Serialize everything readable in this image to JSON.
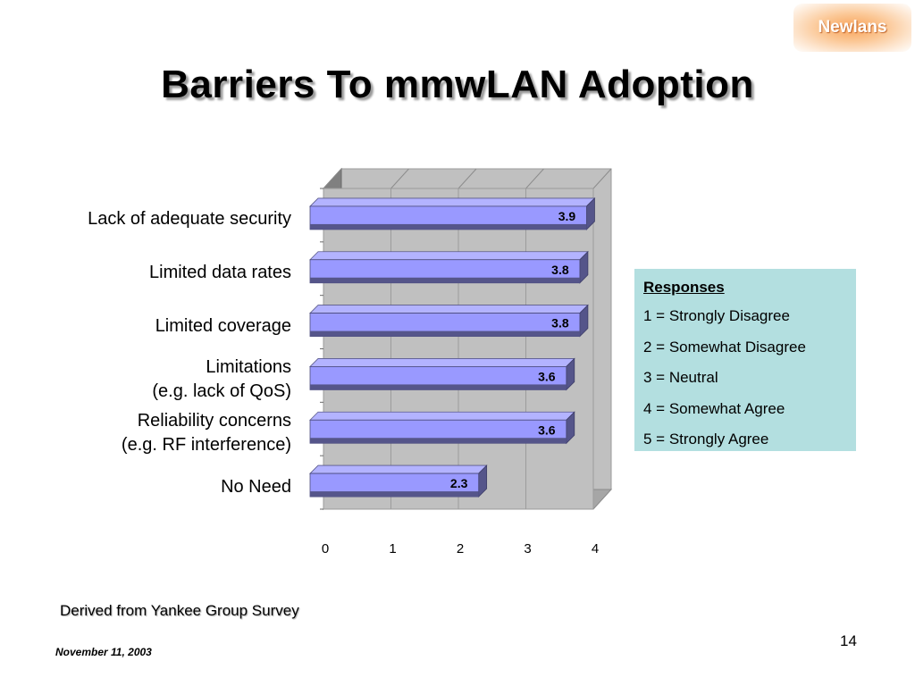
{
  "header": {
    "title": "Barriers To mmwLAN Adoption",
    "logo_text": "Newlans"
  },
  "chart_data": {
    "type": "bar",
    "orientation": "horizontal",
    "categories": [
      "Lack of adequate security",
      "Limited data rates",
      "Limited coverage",
      "Limitations\n(e.g. lack of QoS)",
      "Reliability concerns\n(e.g. RF interference)",
      "No Need"
    ],
    "values": [
      3.9,
      3.8,
      3.8,
      3.6,
      3.6,
      2.3
    ],
    "value_labels": [
      "3.9",
      "3.8",
      "3.8",
      "3.6",
      "3.6",
      "2.3"
    ],
    "xlim": [
      0,
      4
    ],
    "xticks": [
      "0",
      "1",
      "2",
      "3",
      "4"
    ],
    "grid": true,
    "bar_color": "#9999ff",
    "three_d": true
  },
  "legend": {
    "heading": "Responses",
    "items": [
      "1 = Strongly Disagree",
      "2 = Somewhat Disagree",
      "3 = Neutral",
      "4 = Somewhat Agree",
      "5 = Strongly Agree"
    ],
    "background": "#b3dfe0"
  },
  "footer": {
    "source": "Derived from Yankee Group Survey",
    "page_number": "14",
    "date": "November 11, 2003"
  }
}
